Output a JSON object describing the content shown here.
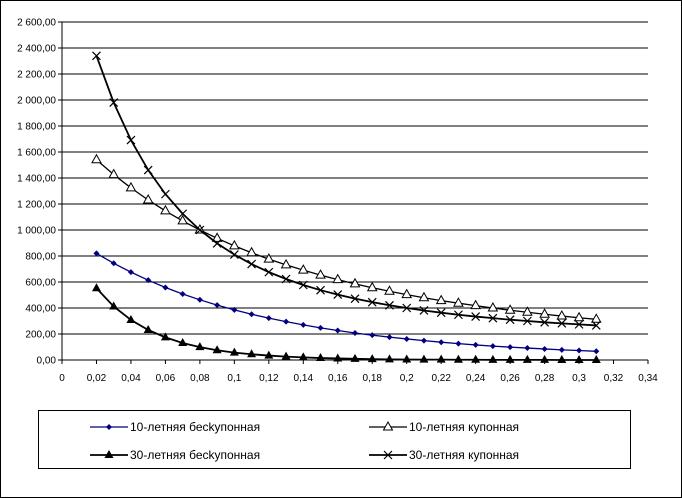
{
  "chart_data": {
    "type": "line",
    "title": "",
    "xlabel": "",
    "ylabel": "",
    "xlim": [
      0,
      0.34
    ],
    "ylim": [
      0,
      2600
    ],
    "grid": "horizontal",
    "legend_position": "bottom",
    "x_ticks": [
      "0",
      "0,02",
      "0,04",
      "0,06",
      "0,08",
      "0,1",
      "0,12",
      "0,14",
      "0,16",
      "0,18",
      "0,2",
      "0,22",
      "0,24",
      "0,26",
      "0,28",
      "0,3",
      "0,32",
      "0,34"
    ],
    "y_ticks": [
      "0,00",
      "200,00",
      "400,00",
      "600,00",
      "800,00",
      "1 000,00",
      "1 200,00",
      "1 400,00",
      "1 600,00",
      "1 800,00",
      "2 000,00",
      "2 200,00",
      "2 400,00",
      "2 600,00"
    ],
    "x": [
      0.02,
      0.03,
      0.04,
      0.05,
      0.06,
      0.07,
      0.08,
      0.09,
      0.1,
      0.11,
      0.12,
      0.13,
      0.14,
      0.15,
      0.16,
      0.17,
      0.18,
      0.19,
      0.2,
      0.21,
      0.22,
      0.23,
      0.24,
      0.25,
      0.26,
      0.27,
      0.28,
      0.29,
      0.3,
      0.31
    ],
    "series": [
      {
        "name": "10-летняя бесkупонная",
        "marker": "diamond",
        "color": "#000080",
        "values": [
          820,
          744,
          676,
          614,
          558,
          508,
          463,
          422,
          386,
          352,
          322,
          295,
          270,
          247,
          227,
          208,
          191,
          176,
          162,
          149,
          137,
          126,
          116,
          107,
          99,
          92,
          85,
          78,
          73,
          67
        ]
      },
      {
        "name": "10-летняя купонная",
        "marker": "triangle-open",
        "color": "#000000",
        "values": [
          1540,
          1426,
          1324,
          1231,
          1147,
          1070,
          1000,
          936,
          878,
          825,
          776,
          732,
          691,
          653,
          618,
          586,
          556,
          529,
          503,
          479,
          457,
          437,
          418,
          400,
          383,
          367,
          352,
          338,
          325,
          313
        ]
      },
      {
        "name": "30-летняя бесkупонная",
        "marker": "triangle-filled",
        "color": "#000000",
        "values": [
          552,
          412,
          308,
          231,
          174,
          131,
          99,
          75,
          57,
          44,
          34,
          26,
          20,
          15,
          12,
          9,
          7,
          5,
          4,
          3,
          3,
          2,
          2,
          1,
          1,
          1,
          1,
          0,
          0,
          0
        ]
      },
      {
        "name": "30-летняя купонная",
        "marker": "x",
        "color": "#000000",
        "values": [
          2340,
          1980,
          1692,
          1461,
          1276,
          1125,
          1000,
          897,
          811,
          738,
          676,
          623,
          577,
          537,
          503,
          472,
          445,
          421,
          400,
          381,
          364,
          348,
          334,
          322,
          310,
          300,
          290,
          282,
          274,
          266
        ]
      }
    ]
  },
  "legend": {
    "items": [
      "10-летняя бесkупонная",
      "10-летняя купонная",
      "30-летняя бесkупонная",
      "30-летняя купонная"
    ]
  }
}
